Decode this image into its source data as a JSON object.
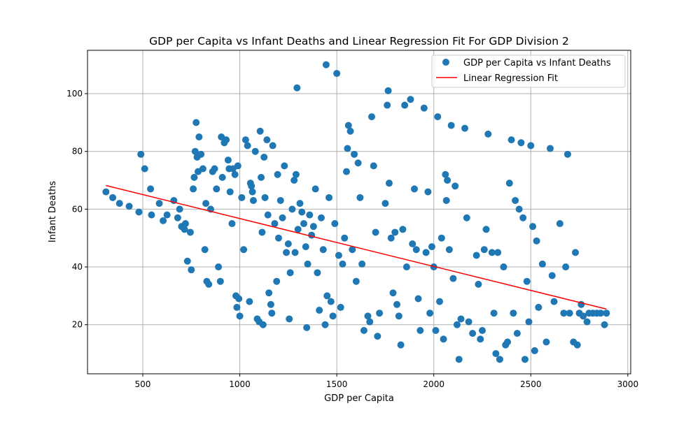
{
  "chart_data": {
    "type": "scatter",
    "title": "GDP per Capita vs Infant Deaths and Linear Regression Fit For GDP Division 2",
    "xlabel": "GDP per Capita",
    "ylabel": "Infant Deaths",
    "xlim": [
      215,
      3015
    ],
    "ylim": [
      3,
      115
    ],
    "xticks": [
      500,
      1000,
      1500,
      2000,
      2500,
      3000
    ],
    "yticks": [
      20,
      40,
      60,
      80,
      100
    ],
    "grid": true,
    "legend_position": "top-right",
    "colors": {
      "scatter": "#1f77b4",
      "fit": "#ff0000"
    },
    "series": [
      {
        "name": "GDP per Capita vs Infant Deaths",
        "type": "scatter",
        "points": [
          [
            310,
            66
          ],
          [
            345,
            64
          ],
          [
            380,
            62
          ],
          [
            430,
            61
          ],
          [
            480,
            59
          ],
          [
            490,
            79
          ],
          [
            510,
            74
          ],
          [
            540,
            67
          ],
          [
            545,
            58
          ],
          [
            585,
            62
          ],
          [
            605,
            56
          ],
          [
            625,
            58
          ],
          [
            660,
            63
          ],
          [
            680,
            57
          ],
          [
            690,
            60
          ],
          [
            700,
            54
          ],
          [
            715,
            53
          ],
          [
            720,
            55
          ],
          [
            730,
            42
          ],
          [
            745,
            52
          ],
          [
            750,
            39
          ],
          [
            760,
            67
          ],
          [
            765,
            71
          ],
          [
            770,
            80
          ],
          [
            775,
            90
          ],
          [
            780,
            78
          ],
          [
            785,
            73
          ],
          [
            790,
            85
          ],
          [
            800,
            79
          ],
          [
            810,
            74
          ],
          [
            820,
            46
          ],
          [
            825,
            62
          ],
          [
            830,
            35
          ],
          [
            840,
            34
          ],
          [
            850,
            60
          ],
          [
            860,
            73
          ],
          [
            870,
            74
          ],
          [
            880,
            67
          ],
          [
            890,
            40
          ],
          [
            900,
            35
          ],
          [
            905,
            85
          ],
          [
            910,
            71
          ],
          [
            920,
            83
          ],
          [
            930,
            84
          ],
          [
            940,
            77
          ],
          [
            945,
            74
          ],
          [
            950,
            66
          ],
          [
            960,
            55
          ],
          [
            965,
            74
          ],
          [
            975,
            72
          ],
          [
            980,
            30
          ],
          [
            985,
            26
          ],
          [
            990,
            75
          ],
          [
            995,
            29
          ],
          [
            1000,
            23
          ],
          [
            1010,
            64
          ],
          [
            1020,
            46
          ],
          [
            1030,
            84
          ],
          [
            1040,
            82
          ],
          [
            1050,
            28
          ],
          [
            1055,
            69
          ],
          [
            1060,
            68
          ],
          [
            1065,
            66
          ],
          [
            1070,
            63
          ],
          [
            1080,
            80
          ],
          [
            1090,
            22
          ],
          [
            1100,
            21
          ],
          [
            1105,
            87
          ],
          [
            1110,
            71
          ],
          [
            1115,
            52
          ],
          [
            1120,
            20
          ],
          [
            1125,
            78
          ],
          [
            1130,
            64
          ],
          [
            1140,
            84
          ],
          [
            1145,
            58
          ],
          [
            1150,
            31
          ],
          [
            1160,
            27
          ],
          [
            1165,
            24
          ],
          [
            1170,
            82
          ],
          [
            1180,
            55
          ],
          [
            1190,
            35
          ],
          [
            1195,
            72
          ],
          [
            1200,
            50
          ],
          [
            1210,
            63
          ],
          [
            1220,
            57
          ],
          [
            1230,
            75
          ],
          [
            1240,
            45
          ],
          [
            1250,
            48
          ],
          [
            1255,
            22
          ],
          [
            1260,
            38
          ],
          [
            1270,
            60
          ],
          [
            1280,
            70
          ],
          [
            1285,
            45
          ],
          [
            1290,
            72
          ],
          [
            1295,
            102
          ],
          [
            1300,
            53
          ],
          [
            1310,
            62
          ],
          [
            1320,
            59
          ],
          [
            1330,
            55
          ],
          [
            1340,
            47
          ],
          [
            1345,
            19
          ],
          [
            1350,
            41
          ],
          [
            1360,
            58
          ],
          [
            1370,
            51
          ],
          [
            1380,
            54
          ],
          [
            1390,
            67
          ],
          [
            1400,
            38
          ],
          [
            1410,
            25
          ],
          [
            1420,
            57
          ],
          [
            1430,
            46
          ],
          [
            1440,
            20
          ],
          [
            1445,
            110
          ],
          [
            1450,
            30
          ],
          [
            1460,
            64
          ],
          [
            1470,
            28
          ],
          [
            1480,
            23
          ],
          [
            1490,
            55
          ],
          [
            1500,
            107
          ],
          [
            1510,
            44
          ],
          [
            1520,
            26
          ],
          [
            1530,
            41
          ],
          [
            1540,
            50
          ],
          [
            1550,
            73
          ],
          [
            1555,
            81
          ],
          [
            1560,
            89
          ],
          [
            1570,
            87
          ],
          [
            1580,
            46
          ],
          [
            1590,
            79
          ],
          [
            1600,
            35
          ],
          [
            1610,
            76
          ],
          [
            1620,
            64
          ],
          [
            1630,
            41
          ],
          [
            1640,
            18
          ],
          [
            1660,
            23
          ],
          [
            1670,
            21
          ],
          [
            1680,
            92
          ],
          [
            1690,
            75
          ],
          [
            1700,
            52
          ],
          [
            1710,
            16
          ],
          [
            1720,
            24
          ],
          [
            1750,
            62
          ],
          [
            1760,
            96
          ],
          [
            1765,
            101
          ],
          [
            1770,
            69
          ],
          [
            1780,
            50
          ],
          [
            1790,
            31
          ],
          [
            1800,
            52
          ],
          [
            1810,
            27
          ],
          [
            1820,
            23
          ],
          [
            1830,
            13
          ],
          [
            1840,
            53
          ],
          [
            1850,
            96
          ],
          [
            1860,
            40
          ],
          [
            1880,
            98
          ],
          [
            1890,
            48
          ],
          [
            1900,
            67
          ],
          [
            1910,
            46
          ],
          [
            1920,
            29
          ],
          [
            1930,
            18
          ],
          [
            1950,
            95
          ],
          [
            1960,
            45
          ],
          [
            1970,
            66
          ],
          [
            1980,
            24
          ],
          [
            1990,
            47
          ],
          [
            2000,
            40
          ],
          [
            2010,
            18
          ],
          [
            2020,
            92
          ],
          [
            2030,
            28
          ],
          [
            2040,
            50
          ],
          [
            2050,
            15
          ],
          [
            2060,
            72
          ],
          [
            2065,
            63
          ],
          [
            2070,
            70
          ],
          [
            2080,
            46
          ],
          [
            2090,
            89
          ],
          [
            2100,
            36
          ],
          [
            2110,
            68
          ],
          [
            2120,
            20
          ],
          [
            2130,
            8
          ],
          [
            2140,
            22
          ],
          [
            2160,
            88
          ],
          [
            2170,
            57
          ],
          [
            2180,
            21
          ],
          [
            2200,
            17
          ],
          [
            2220,
            44
          ],
          [
            2230,
            34
          ],
          [
            2240,
            15
          ],
          [
            2250,
            18
          ],
          [
            2260,
            46
          ],
          [
            2270,
            53
          ],
          [
            2280,
            86
          ],
          [
            2300,
            45
          ],
          [
            2310,
            24
          ],
          [
            2320,
            10
          ],
          [
            2330,
            45
          ],
          [
            2340,
            8
          ],
          [
            2360,
            40
          ],
          [
            2370,
            13
          ],
          [
            2380,
            14
          ],
          [
            2390,
            69
          ],
          [
            2400,
            84
          ],
          [
            2410,
            24
          ],
          [
            2420,
            63
          ],
          [
            2430,
            17
          ],
          [
            2440,
            60
          ],
          [
            2450,
            83
          ],
          [
            2460,
            57
          ],
          [
            2470,
            8
          ],
          [
            2480,
            35
          ],
          [
            2490,
            21
          ],
          [
            2500,
            82
          ],
          [
            2510,
            54
          ],
          [
            2520,
            11
          ],
          [
            2530,
            49
          ],
          [
            2540,
            26
          ],
          [
            2560,
            41
          ],
          [
            2580,
            14
          ],
          [
            2600,
            81
          ],
          [
            2610,
            37
          ],
          [
            2620,
            28
          ],
          [
            2650,
            55
          ],
          [
            2670,
            24
          ],
          [
            2680,
            40
          ],
          [
            2690,
            79
          ],
          [
            2700,
            24
          ],
          [
            2720,
            14
          ],
          [
            2730,
            45
          ],
          [
            2740,
            13
          ],
          [
            2750,
            24
          ],
          [
            2760,
            27
          ],
          [
            2770,
            23
          ],
          [
            2790,
            21
          ],
          [
            2800,
            24
          ],
          [
            2820,
            24
          ],
          [
            2840,
            24
          ],
          [
            2860,
            24
          ],
          [
            2880,
            20
          ],
          [
            2890,
            24
          ]
        ]
      },
      {
        "name": "Linear Regression Fit",
        "type": "line",
        "x": [
          310,
          2890
        ],
        "y": [
          68.2,
          25.4
        ]
      }
    ]
  }
}
